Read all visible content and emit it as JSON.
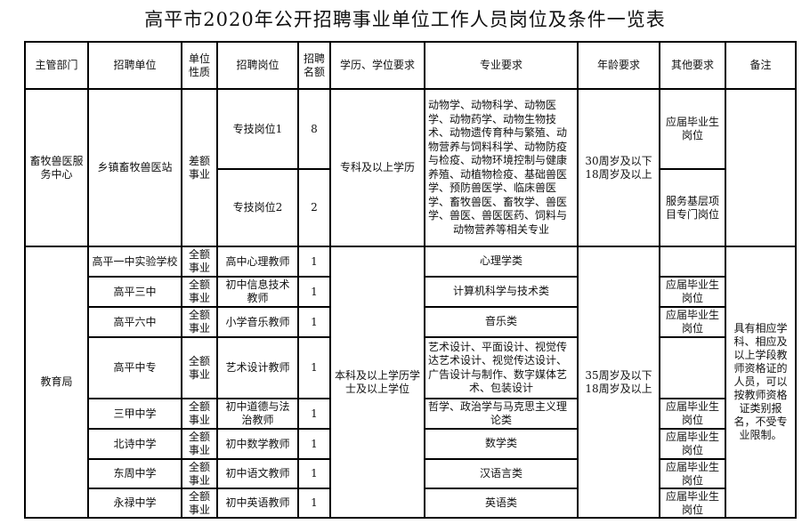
{
  "title": "高平市2020年公开招聘事业单位工作人员岗位及条件一览表",
  "headers": [
    "主管部门",
    "招聘单位",
    "单位性质",
    "招聘岗位",
    "招聘名额",
    "学历、学位要求",
    "专业要求",
    "年龄要求",
    "其他要求",
    "备注"
  ],
  "group1": {
    "department": "畜牧兽医服务中心",
    "unit": "乡镇畜牧兽医站",
    "nature": "差额事业",
    "education": "专科及以上学历",
    "major": "动物学、动物科学、动物医学、动物药学、动物生物技术、动物遗传育种与繁殖、动物营养与饲料科学、动物防疫与检疫、动物环境控制与健康养殖、动植物检疫、基础兽医学、预防兽医学、临床兽医学、畜牧兽医、畜牧学、兽医学、兽医、兽医医药、饲料与动物营养等相关专业",
    "age": "30周岁及以下18周岁及以上",
    "rows": [
      {
        "post": "专技岗位1",
        "count": "8",
        "other": "应届毕业生岗位"
      },
      {
        "post": "专技岗位2",
        "count": "2",
        "other": "服务基层项目专门岗位"
      }
    ]
  },
  "group2": {
    "department": "教育局",
    "education": "本科及以上学历学士及以上学位",
    "age": "35周岁及以下18周岁及以上",
    "remark": "具有相应学科、相应及以上学段教师资格证的人员，可以按教师资格证类别报名，不受专业限制。",
    "rows": [
      {
        "unit": "高平一中实验学校",
        "nature": "全额事业",
        "post": "高中心理教师",
        "count": "1",
        "major": "心理学类",
        "other": ""
      },
      {
        "unit": "高平三中",
        "nature": "全额事业",
        "post": "初中信息技术教师",
        "count": "1",
        "major": "计算机科学与技术类",
        "other": "应届毕业生岗位"
      },
      {
        "unit": "高平六中",
        "nature": "全额事业",
        "post": "小学音乐教师",
        "count": "1",
        "major": "音乐类",
        "other": "应届毕业生岗位"
      },
      {
        "unit": "高平中专",
        "nature": "全额事业",
        "post": "艺术设计教师",
        "count": "1",
        "major": "艺术设计、平面设计、视觉传达艺术设计、视觉传达设计、广告设计与制作、数字媒体艺术、包装设计",
        "other": ""
      },
      {
        "unit": "三甲中学",
        "nature": "全额事业",
        "post": "初中道德与法治教师",
        "count": "1",
        "major": "哲学、政治学与马克思主义理论类",
        "other": "应届毕业生岗位"
      },
      {
        "unit": "北诗中学",
        "nature": "全额事业",
        "post": "初中数学教师",
        "count": "1",
        "major": "数学类",
        "other": "应届毕业生岗位"
      },
      {
        "unit": "东周中学",
        "nature": "全额事业",
        "post": "初中语文教师",
        "count": "1",
        "major": "汉语言类",
        "other": "应届毕业生岗位"
      },
      {
        "unit": "永禄中学",
        "nature": "全额事业",
        "post": "初中英语教师",
        "count": "1",
        "major": "英语类",
        "other": "应届毕业生岗位"
      }
    ]
  }
}
